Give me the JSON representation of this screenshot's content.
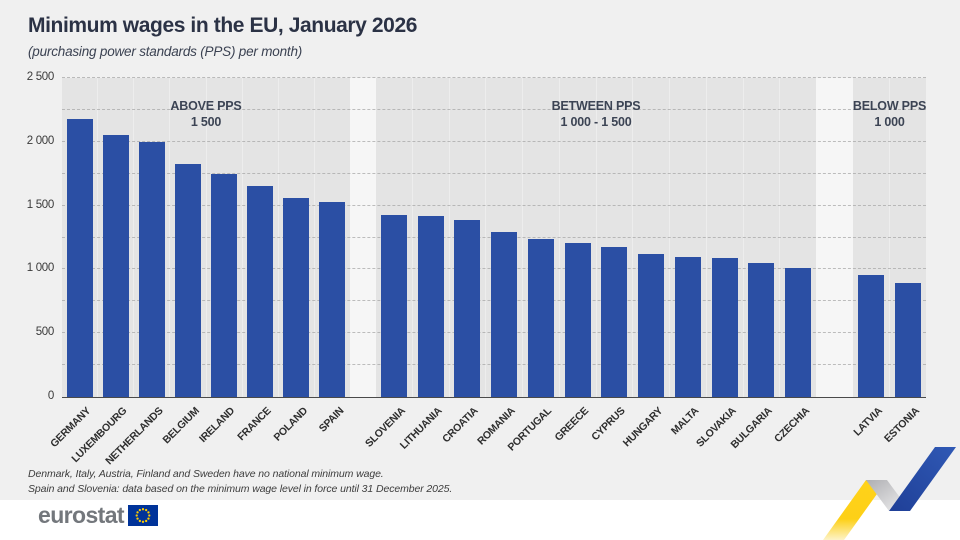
{
  "title": "Minimum wages in the EU, January 2026",
  "subtitle": "(purchasing power standards (PPS) per month)",
  "chart_data": {
    "type": "bar",
    "title": "Minimum wages in the EU, January 2026",
    "subtitle": "(purchasing power standards (PPS) per month)",
    "unit": "PPS per month",
    "ylim": [
      0,
      2500
    ],
    "ytick_values": [
      0,
      500,
      1000,
      1500,
      2000,
      2500
    ],
    "ytick_labels": [
      "0",
      "500",
      "1 000",
      "1 500",
      "2 000",
      "2 500"
    ],
    "gridline_step": 250,
    "grid": "dashed horizontal every 250",
    "bar_color": "#2b4fa4",
    "groups": [
      {
        "header_line1": "ABOVE PPS",
        "header_line2": "1 500",
        "categories": [
          "GERMANY",
          "LUXEMBOURG",
          "NETHERLANDS",
          "BELGIUM",
          "IRELAND",
          "FRANCE",
          "POLAND",
          "SPAIN"
        ],
        "values": [
          2175,
          2050,
          2000,
          1830,
          1745,
          1650,
          1560,
          1525
        ]
      },
      {
        "header_line1": "BETWEEN PPS",
        "header_line2": "1 000 - 1 500",
        "categories": [
          "SLOVENIA",
          "LITHUANIA",
          "CROATIA",
          "ROMANIA",
          "PORTUGAL",
          "GREECE",
          "CYPRUS",
          "HUNGARY",
          "MALTA",
          "SLOVAKIA",
          "BULGARIA",
          "CZECHIA"
        ],
        "values": [
          1425,
          1420,
          1385,
          1290,
          1240,
          1205,
          1175,
          1120,
          1095,
          1090,
          1050,
          1015
        ]
      },
      {
        "header_line1": "BELOW PPS",
        "header_line2": "1 000",
        "categories": [
          "LATVIA",
          "ESTONIA"
        ],
        "values": [
          955,
          890
        ]
      }
    ]
  },
  "footnotes": [
    "Denmark, Italy, Austria, Finland and Sweden have no national minimum wage.",
    "Spain and Slovenia: data based on the minimum wage level in force until 31 December 2025."
  ],
  "logo": {
    "text": "eurostat"
  },
  "colors": {
    "bar": "#2b4fa4",
    "page_background": "#f0f0f0",
    "section_background": "#e4e4e4",
    "title_text": "#2b3245",
    "eu_flag_blue": "#003399",
    "eu_flag_stars": "#ffcc00",
    "ribbon_yellow": "#fdd017",
    "ribbon_silver": "#c0c0c3",
    "ribbon_blue": "#2a4fa2",
    "logo_gray": "#73777c"
  }
}
